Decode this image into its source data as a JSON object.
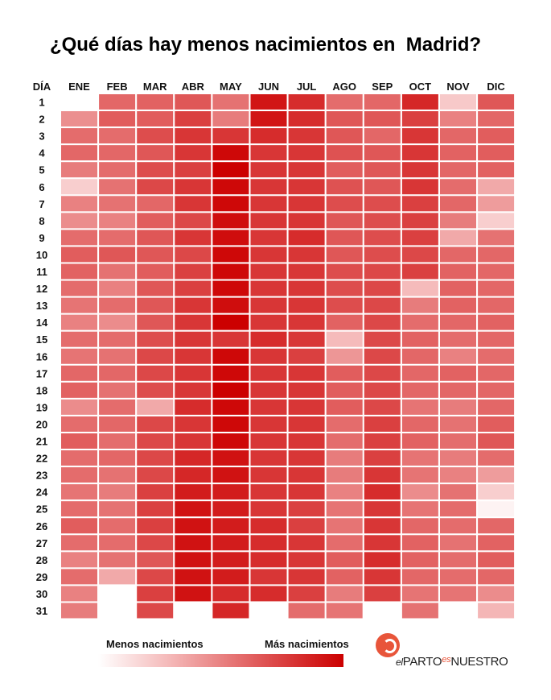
{
  "title": "¿Qué días hay menos nacimientos en  Madrid?",
  "legend": {
    "low_label": "Menos nacimientos",
    "high_label": "Más nacimientos"
  },
  "logo": {
    "part1": "el",
    "part2": "PARTO",
    "part3": "es",
    "part4": "NUESTRO"
  },
  "colors": {
    "low": "#ffffff",
    "high": "#cc0000"
  },
  "chart_data": {
    "type": "heatmap",
    "corner_label": "DÍA",
    "columns": [
      "ENE",
      "FEB",
      "MAR",
      "ABR",
      "MAY",
      "JUN",
      "JUL",
      "AGO",
      "SEP",
      "OCT",
      "NOV",
      "DIC"
    ],
    "rows": [
      "1",
      "2",
      "3",
      "4",
      "5",
      "6",
      "7",
      "8",
      "9",
      "10",
      "11",
      "12",
      "13",
      "14",
      "15",
      "16",
      "17",
      "18",
      "19",
      "20",
      "21",
      "22",
      "23",
      "24",
      "25",
      "26",
      "27",
      "28",
      "29",
      "30",
      "31"
    ],
    "value_scale": "relative intensity 0 (menos nacimientos) to 1 (más nacimientos)",
    "values": [
      [
        null,
        0.6,
        0.62,
        0.66,
        0.56,
        0.92,
        0.83,
        0.58,
        0.6,
        0.85,
        0.22,
        0.66
      ],
      [
        0.45,
        0.64,
        0.64,
        0.75,
        0.52,
        0.92,
        0.83,
        0.66,
        0.66,
        0.75,
        0.5,
        0.6
      ],
      [
        0.58,
        0.58,
        0.7,
        0.79,
        0.79,
        0.83,
        0.79,
        0.66,
        0.6,
        0.79,
        0.6,
        0.64
      ],
      [
        0.6,
        0.6,
        0.66,
        0.79,
        0.97,
        0.79,
        0.79,
        0.68,
        0.66,
        0.79,
        0.62,
        0.64
      ],
      [
        0.52,
        0.58,
        0.7,
        0.75,
        1.0,
        0.79,
        0.79,
        0.64,
        0.66,
        0.79,
        0.6,
        0.62
      ],
      [
        0.2,
        0.56,
        0.72,
        0.79,
        0.97,
        0.79,
        0.79,
        0.68,
        0.66,
        0.79,
        0.58,
        0.35
      ],
      [
        0.5,
        0.56,
        0.6,
        0.79,
        0.97,
        0.79,
        0.79,
        0.7,
        0.7,
        0.75,
        0.6,
        0.4
      ],
      [
        0.46,
        0.5,
        0.64,
        0.72,
        0.95,
        0.79,
        0.79,
        0.66,
        0.7,
        0.75,
        0.52,
        0.2
      ],
      [
        0.58,
        0.58,
        0.66,
        0.79,
        0.95,
        0.79,
        0.83,
        0.66,
        0.7,
        0.75,
        0.35,
        0.56
      ],
      [
        0.64,
        0.66,
        0.66,
        0.72,
        0.97,
        0.79,
        0.79,
        0.66,
        0.7,
        0.72,
        0.6,
        0.6
      ],
      [
        0.62,
        0.56,
        0.64,
        0.75,
        0.97,
        0.79,
        0.79,
        0.7,
        0.72,
        0.75,
        0.62,
        0.6
      ],
      [
        0.58,
        0.5,
        0.66,
        0.75,
        0.97,
        0.79,
        0.79,
        0.7,
        0.72,
        0.28,
        0.62,
        0.6
      ],
      [
        0.55,
        0.58,
        0.66,
        0.79,
        0.95,
        0.79,
        0.79,
        0.7,
        0.72,
        0.52,
        0.62,
        0.6
      ],
      [
        0.5,
        0.46,
        0.66,
        0.79,
        1.0,
        0.79,
        0.79,
        0.62,
        0.72,
        0.58,
        0.6,
        0.62
      ],
      [
        0.58,
        0.58,
        0.7,
        0.79,
        0.79,
        0.83,
        0.79,
        0.28,
        0.72,
        0.62,
        0.58,
        0.6
      ],
      [
        0.55,
        0.56,
        0.72,
        0.79,
        0.97,
        0.79,
        0.75,
        0.42,
        0.72,
        0.6,
        0.5,
        0.58
      ],
      [
        0.6,
        0.6,
        0.72,
        0.79,
        0.97,
        0.79,
        0.79,
        0.64,
        0.72,
        0.6,
        0.62,
        0.6
      ],
      [
        0.62,
        0.56,
        0.7,
        0.79,
        1.0,
        0.79,
        0.79,
        0.64,
        0.72,
        0.6,
        0.6,
        0.6
      ],
      [
        0.46,
        0.58,
        0.35,
        0.83,
        0.97,
        0.79,
        0.79,
        0.64,
        0.72,
        0.55,
        0.52,
        0.6
      ],
      [
        0.58,
        0.6,
        0.72,
        0.79,
        0.97,
        0.79,
        0.79,
        0.58,
        0.75,
        0.6,
        0.56,
        0.64
      ],
      [
        0.64,
        0.58,
        0.72,
        0.79,
        0.97,
        0.79,
        0.79,
        0.58,
        0.75,
        0.62,
        0.58,
        0.66
      ],
      [
        0.58,
        0.6,
        0.72,
        0.85,
        0.93,
        0.79,
        0.79,
        0.52,
        0.75,
        0.55,
        0.52,
        0.58
      ],
      [
        0.58,
        0.56,
        0.72,
        0.85,
        0.93,
        0.79,
        0.79,
        0.52,
        0.79,
        0.55,
        0.5,
        0.4
      ],
      [
        0.55,
        0.52,
        0.75,
        0.89,
        0.89,
        0.79,
        0.79,
        0.5,
        0.83,
        0.46,
        0.56,
        0.2
      ],
      [
        0.58,
        0.56,
        0.75,
        0.93,
        0.89,
        0.79,
        0.75,
        0.55,
        0.79,
        0.55,
        0.58,
        0.05
      ],
      [
        0.64,
        0.58,
        0.75,
        0.93,
        0.89,
        0.83,
        0.75,
        0.55,
        0.79,
        0.6,
        0.58,
        0.6
      ],
      [
        0.58,
        0.58,
        0.72,
        0.93,
        0.89,
        0.83,
        0.79,
        0.58,
        0.79,
        0.62,
        0.56,
        0.62
      ],
      [
        0.5,
        0.56,
        0.66,
        0.93,
        0.89,
        0.83,
        0.79,
        0.64,
        0.83,
        0.62,
        0.58,
        0.64
      ],
      [
        0.58,
        0.35,
        0.72,
        0.93,
        0.89,
        0.79,
        0.79,
        0.62,
        0.79,
        0.6,
        0.58,
        0.6
      ],
      [
        0.5,
        null,
        0.75,
        0.93,
        0.83,
        0.83,
        0.75,
        0.52,
        0.75,
        0.55,
        0.55,
        0.46
      ],
      [
        0.52,
        null,
        0.72,
        null,
        0.85,
        null,
        0.58,
        0.55,
        null,
        0.56,
        null,
        0.3
      ]
    ]
  }
}
